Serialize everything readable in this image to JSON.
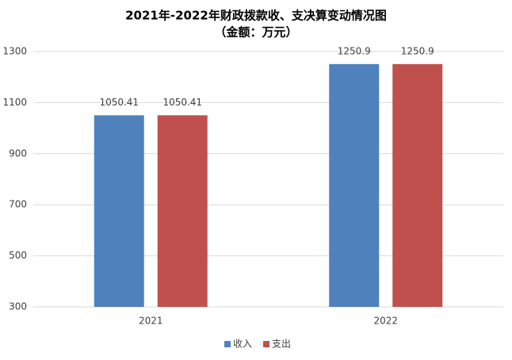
{
  "chart_data": {
    "type": "bar",
    "title": "2021年-2022年财政拨款收、支决算变动情况图",
    "subtitle": "（金额：万元）",
    "categories": [
      "2021",
      "2022"
    ],
    "series": [
      {
        "name": "收入",
        "color": "#4f81bd",
        "values": [
          1050.41,
          1250.9
        ]
      },
      {
        "name": "支出",
        "color": "#c0504d",
        "values": [
          1050.41,
          1250.9
        ]
      }
    ],
    "ylim": [
      300,
      1300
    ],
    "yticks": [
      300,
      500,
      700,
      900,
      1100,
      1300
    ],
    "grid": true,
    "legend": "bottom"
  }
}
